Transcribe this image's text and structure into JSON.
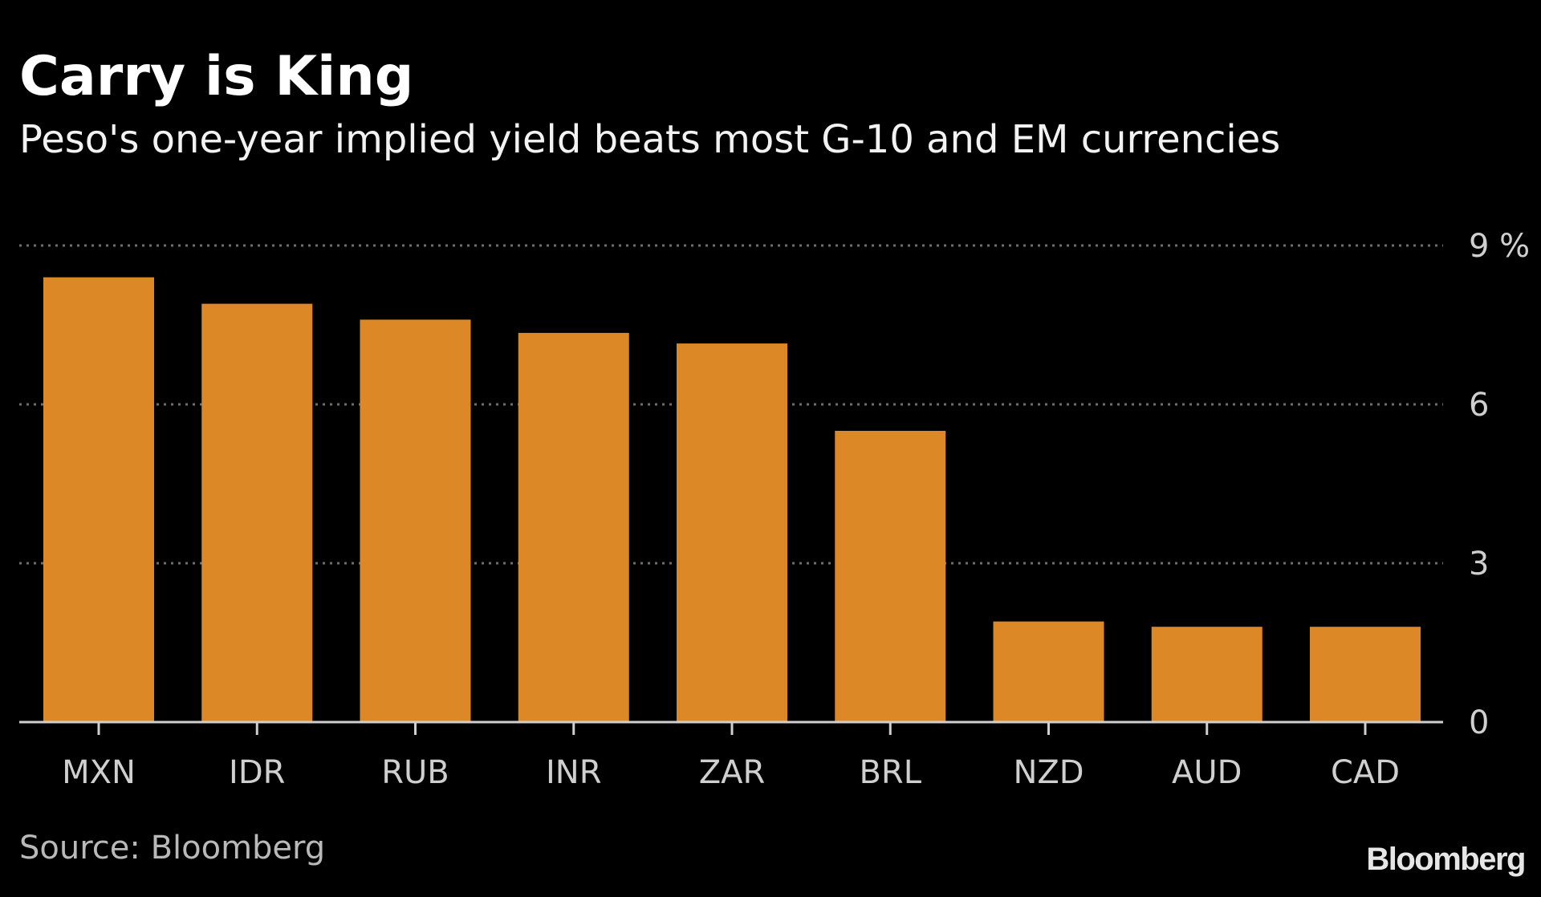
{
  "chart_data": {
    "type": "bar",
    "title": "Carry is King",
    "subtitle": "Peso's one-year implied yield beats most G-10 and EM currencies",
    "xlabel": "",
    "ylabel": "",
    "y_unit": "%",
    "ylim": [
      0,
      9
    ],
    "yticks": [
      0,
      3,
      6,
      9
    ],
    "ytick_labels": [
      "0",
      "3",
      "6",
      "9 %"
    ],
    "grid": true,
    "categories": [
      "MXN",
      "IDR",
      "RUB",
      "INR",
      "ZAR",
      "BRL",
      "NZD",
      "AUD",
      "CAD"
    ],
    "values": [
      8.4,
      7.9,
      7.6,
      7.35,
      7.15,
      5.5,
      1.9,
      1.8,
      1.8
    ],
    "bar_color": "#dd8826",
    "source": "Source: Bloomberg"
  },
  "branding": {
    "logo_text": "Bloomberg"
  }
}
